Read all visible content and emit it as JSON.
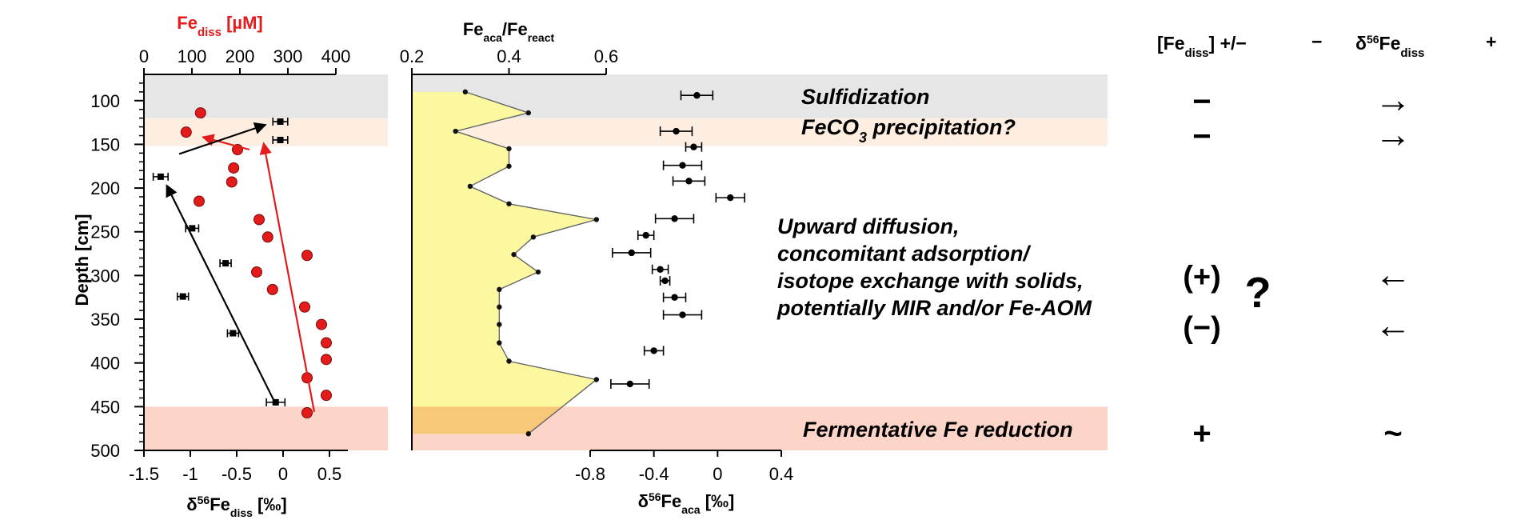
{
  "chart_data": {
    "type": "scatter",
    "axes": {
      "depth": {
        "label": "Depth [cm]",
        "range": [
          500,
          70
        ],
        "ticks": [
          100,
          150,
          200,
          250,
          300,
          350,
          400,
          450,
          500
        ]
      },
      "fe_diss": {
        "label_main": "Fe",
        "label_sub": "diss",
        "label_unit": " [µM]",
        "range": [
          0,
          400
        ],
        "ticks": [
          0,
          100,
          200,
          300,
          400
        ],
        "color": "#e31b1b"
      },
      "d56_diss": {
        "label_prefix": "δ",
        "label_sup": "56",
        "label_main": "Fe",
        "label_sub": "diss",
        "label_unit": " [‰]",
        "range": [
          -1.5,
          0.5
        ],
        "ticks": [
          "-1.5",
          "-1",
          "-0.5",
          "0",
          "0.5"
        ]
      },
      "ratio": {
        "label_a": "Fe",
        "label_a_sub": "aca",
        "label_sep": "/Fe",
        "label_b_sub": "react",
        "range": [
          0.2,
          0.6
        ],
        "ticks": [
          "0.2",
          "0.4",
          "0.6"
        ]
      },
      "d56_aca": {
        "label_prefix": "δ",
        "label_sup": "56",
        "label_main": "Fe",
        "label_sub": "aca",
        "label_unit": " [‰]",
        "range": [
          -0.8,
          0.4
        ],
        "ticks": [
          "-0.8",
          "-0.4",
          "0",
          "0.4"
        ]
      }
    },
    "series": [
      {
        "key": "fe_diss",
        "color": "#e31b1b",
        "points": [
          [
            114,
            118
          ],
          [
            136,
            88
          ],
          [
            156,
            195
          ],
          [
            177,
            187
          ],
          [
            193,
            183
          ],
          [
            215,
            115
          ],
          [
            236,
            240
          ],
          [
            256,
            258
          ],
          [
            277,
            340
          ],
          [
            296,
            235
          ],
          [
            316,
            268
          ],
          [
            336,
            335
          ],
          [
            356,
            370
          ],
          [
            377,
            380
          ],
          [
            396,
            380
          ],
          [
            417,
            340
          ],
          [
            437,
            380
          ],
          [
            457,
            340
          ]
        ]
      },
      {
        "key": "d56_diss",
        "points": [
          [
            124,
            -0.03,
            0.08
          ],
          [
            145,
            -0.03,
            0.08
          ],
          [
            187,
            -1.32,
            0.08
          ],
          [
            246,
            -0.98,
            0.07
          ],
          [
            286,
            -0.62,
            0.06
          ],
          [
            324,
            -1.08,
            0.06
          ],
          [
            366,
            -0.54,
            0.06
          ],
          [
            445,
            -0.08,
            0.1
          ]
        ]
      },
      {
        "key": "ratio",
        "points": [
          [
            90,
            0.31
          ],
          [
            114,
            0.44
          ],
          [
            135,
            0.29
          ],
          [
            155,
            0.4
          ],
          [
            175,
            0.4
          ],
          [
            198,
            0.32
          ],
          [
            218,
            0.4
          ],
          [
            236,
            0.58
          ],
          [
            256,
            0.45
          ],
          [
            276,
            0.41
          ],
          [
            296,
            0.46
          ],
          [
            316,
            0.38
          ],
          [
            336,
            0.38
          ],
          [
            356,
            0.38
          ],
          [
            377,
            0.38
          ],
          [
            398,
            0.4
          ],
          [
            419,
            0.58
          ],
          [
            481,
            0.44
          ]
        ]
      },
      {
        "key": "d56_aca",
        "points": [
          [
            94,
            -0.13,
            0.1
          ],
          [
            135,
            -0.26,
            0.1
          ],
          [
            153,
            -0.15,
            0.05
          ],
          [
            174,
            -0.22,
            0.12
          ],
          [
            192,
            -0.18,
            0.1
          ],
          [
            211,
            0.08,
            0.09
          ],
          [
            235,
            -0.27,
            0.12
          ],
          [
            254,
            -0.45,
            0.05
          ],
          [
            274,
            -0.54,
            0.12
          ],
          [
            293,
            -0.36,
            0.05
          ],
          [
            306,
            -0.33,
            0.03
          ],
          [
            325,
            -0.27,
            0.07
          ],
          [
            345,
            -0.22,
            0.12
          ],
          [
            386,
            -0.4,
            0.06
          ],
          [
            424,
            -0.55,
            0.12
          ]
        ]
      }
    ],
    "trend_arrows": [
      {
        "key": "fe_diss",
        "color": "#e31b1b",
        "from": [
          456,
          355
        ],
        "to": [
          150,
          250
        ]
      },
      {
        "key": "fe_diss",
        "color": "#e31b1b",
        "from": [
          156,
          220
        ],
        "to": [
          142,
          125
        ]
      },
      {
        "key": "d56_diss",
        "color": "#000000",
        "from": [
          447,
          -0.08
        ],
        "to": [
          198,
          -1.25
        ]
      },
      {
        "key": "d56_diss",
        "color": "#000000",
        "from": [
          161,
          -1.12
        ],
        "to": [
          128,
          -0.2
        ]
      }
    ],
    "zones": [
      {
        "label": "Sulfidization",
        "from": 70,
        "to": 120,
        "color": "#e6e6e6"
      },
      {
        "label": "FeCO",
        "sub": "3",
        "suffix": " precipitation?",
        "from": 120,
        "to": 152,
        "color": "#fdeee1"
      },
      {
        "label": "Upward diffusion,",
        "lines": [
          "Upward diffusion,",
          "concomitant adsorption/",
          "isotope exchange with solids,",
          "potentially MIR and/or Fe-AOM"
        ]
      },
      {
        "label": "Fermentative Fe reduction",
        "from": 450,
        "to": 500,
        "color": "#fcd5c8"
      }
    ],
    "summary": {
      "header_fe_main": "[Fe",
      "header_fe_sub": "diss",
      "header_fe_tail": "] +/−",
      "header_minus": "−",
      "header_d_prefix": "δ",
      "header_d_sup": "56",
      "header_d_main": "Fe",
      "header_d_sub": "diss",
      "header_plus": "+",
      "rows": [
        {
          "depth": 100,
          "fe": "−",
          "delta": "→"
        },
        {
          "depth": 140,
          "fe": "−",
          "delta": "→"
        },
        {
          "depth": 300,
          "fe": "(+)",
          "delta": "←"
        },
        {
          "depth": 358,
          "fe": "(−)",
          "delta": "←"
        },
        {
          "depth": 480,
          "fe": "+",
          "delta": "~"
        }
      ],
      "question": "?"
    }
  }
}
